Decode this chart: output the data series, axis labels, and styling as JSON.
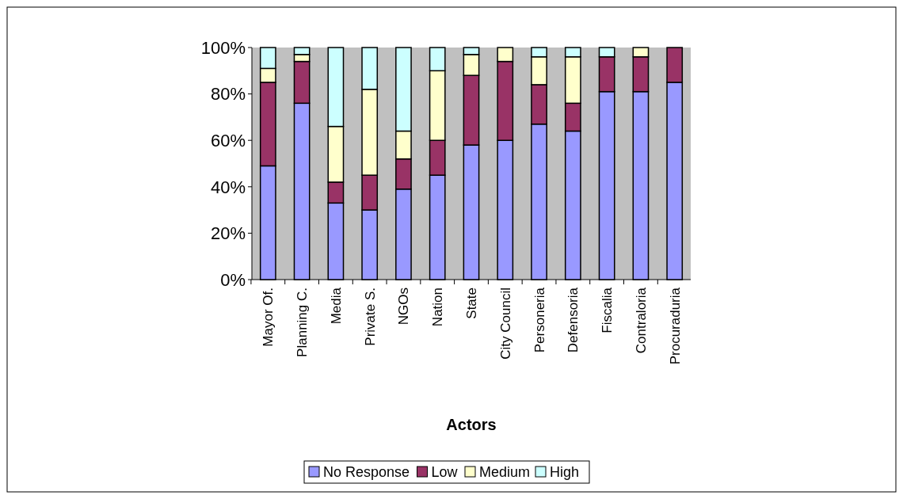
{
  "chart_data": {
    "type": "bar",
    "stacked": true,
    "xlabel": "Actors",
    "legend": "bottom",
    "categories": [
      "Mayor Of.",
      "Planning C.",
      "Media",
      "Private S.",
      "NGOs",
      "Nation",
      "State",
      "City Council",
      "Personeria",
      "Defensoria",
      "Fiscalia",
      "Contraloria",
      "Procuraduria"
    ],
    "series": [
      {
        "name": "No Response",
        "color": "#9999ff",
        "values": [
          49,
          76,
          33,
          30,
          39,
          45,
          58,
          60,
          67,
          64,
          81,
          81,
          85
        ]
      },
      {
        "name": "Low",
        "color": "#993366",
        "values": [
          36,
          18,
          9,
          15,
          13,
          15,
          30,
          34,
          17,
          12,
          15,
          15,
          15
        ]
      },
      {
        "name": "Medium",
        "color": "#ffffcc",
        "values": [
          6,
          3,
          24,
          37,
          12,
          30,
          9,
          6,
          12,
          20,
          0,
          4,
          0
        ]
      },
      {
        "name": "High",
        "color": "#ccffff",
        "values": [
          9,
          3,
          34,
          18,
          36,
          10,
          3,
          0,
          4,
          4,
          4,
          0,
          0
        ]
      }
    ],
    "ylim": [
      0,
      100
    ],
    "yticks": [
      {
        "value": 0,
        "label": "0%"
      },
      {
        "value": 20,
        "label": "20%"
      },
      {
        "value": 40,
        "label": "40%"
      },
      {
        "value": 60,
        "label": "60%"
      },
      {
        "value": 80,
        "label": "80%"
      },
      {
        "value": 100,
        "label": "100%"
      }
    ]
  }
}
